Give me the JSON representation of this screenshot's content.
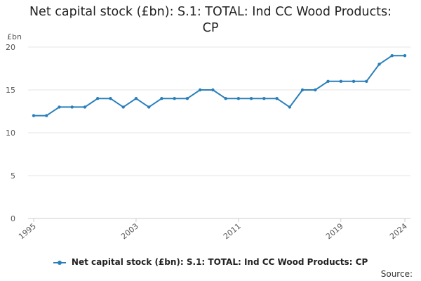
{
  "chart_data": {
    "type": "line",
    "title": "Net capital stock (£bn): S.1: TOTAL: Ind CC Wood Products: CP",
    "ylabel": "£bn",
    "xlabel": "",
    "x": [
      1995,
      1996,
      1997,
      1998,
      1999,
      2000,
      2001,
      2002,
      2003,
      2004,
      2005,
      2006,
      2007,
      2008,
      2009,
      2010,
      2011,
      2012,
      2013,
      2014,
      2015,
      2016,
      2017,
      2018,
      2019,
      2020,
      2021,
      2022,
      2023,
      2024
    ],
    "series": [
      {
        "name": "Net capital stock (£bn): S.1: TOTAL: Ind CC Wood Products: CP",
        "values": [
          12,
          12,
          13,
          13,
          13,
          14,
          14,
          13,
          14,
          13,
          14,
          14,
          14,
          15,
          15,
          14,
          14,
          14,
          14,
          14,
          13,
          15,
          15,
          16,
          16,
          16,
          16,
          18,
          19,
          19
        ],
        "color": "#2a7fba"
      }
    ],
    "xticks": [
      "1995",
      "2003",
      "2011",
      "2019",
      "2024"
    ],
    "yticks": [
      "0",
      "5",
      "10",
      "15",
      "20"
    ],
    "ylim": [
      0,
      20
    ],
    "xlim": [
      1995,
      2024
    ],
    "grid": true,
    "legend_position": "bottom"
  },
  "source_label": "Source:"
}
